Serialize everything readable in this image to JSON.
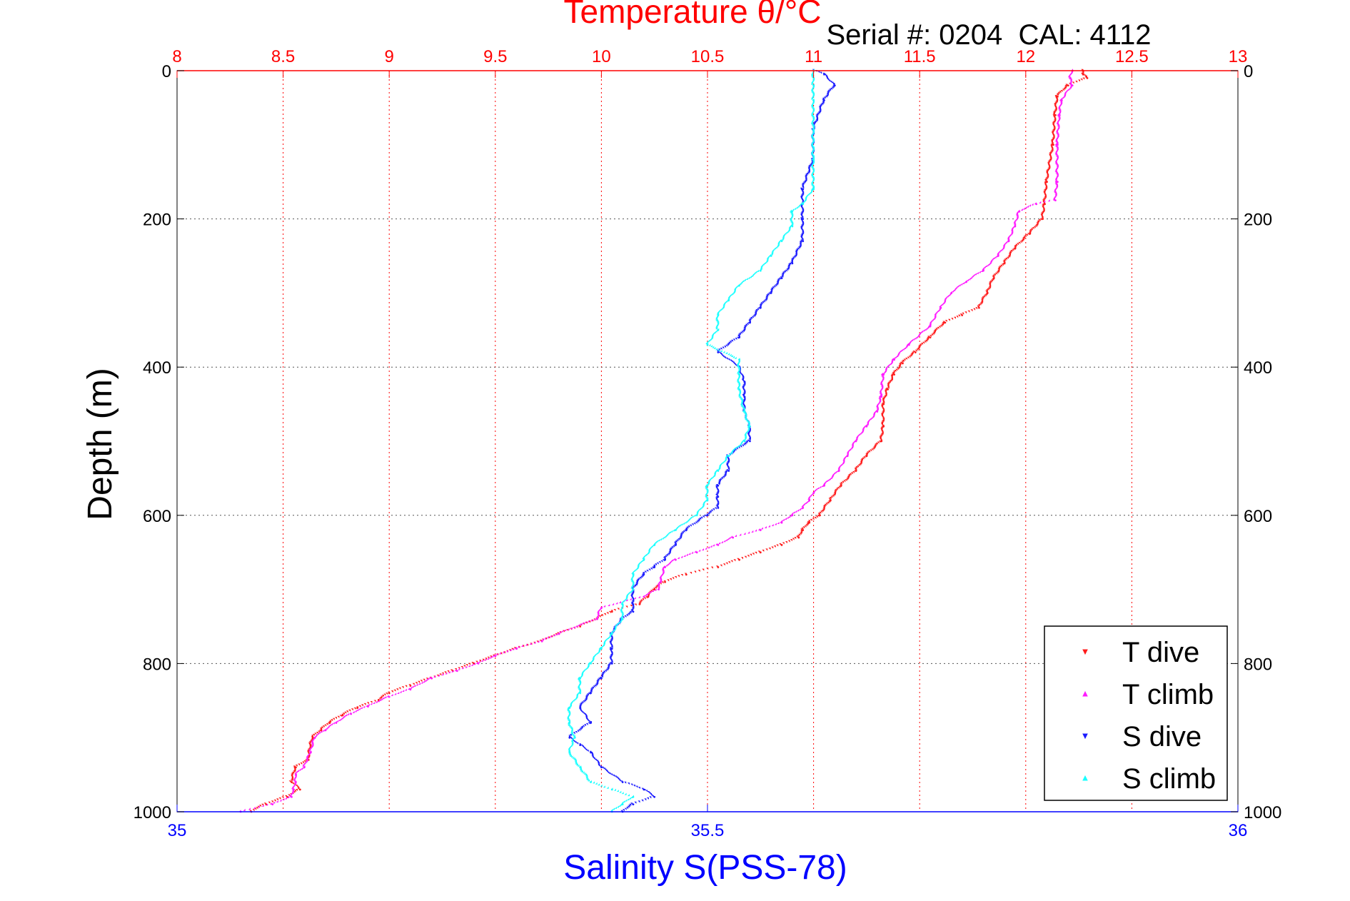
{
  "chart_data": {
    "type": "scatter",
    "title": "Temperature θ/°C",
    "subtitle": "Serial #: 0204  CAL: 4112",
    "xlabel_top": "Temperature θ/°C",
    "xlabel_bottom": "Salinity S(PSS-78)",
    "ylabel": "Depth (m)",
    "grid": true,
    "legend_position": "bottom-right",
    "y_reversed": true,
    "ylim": [
      0,
      1000
    ],
    "yticks": [
      "0",
      "200",
      "400",
      "600",
      "800",
      "1000"
    ],
    "xlim_top": [
      8,
      13
    ],
    "xticks_top": [
      "8",
      "8.5",
      "9",
      "9.5",
      "10",
      "10.5",
      "11",
      "11.5",
      "12",
      "12.5",
      "13"
    ],
    "xlim_bottom": [
      35,
      36
    ],
    "xticks_bottom": [
      "35",
      "35.5",
      "36"
    ],
    "colors": {
      "temperature_axis": "#ff0000",
      "salinity_axis": "#0000ff",
      "grid": "#555555"
    },
    "series": [
      {
        "name": "T dive",
        "axis": "top",
        "color": "#ff1a1a",
        "marker": "triangle-down",
        "points": [
          [
            12.27,
            0
          ],
          [
            12.27,
            5
          ],
          [
            12.29,
            10
          ],
          [
            12.2,
            20
          ],
          [
            12.15,
            35
          ],
          [
            12.14,
            60
          ],
          [
            12.13,
            100
          ],
          [
            12.1,
            150
          ],
          [
            12.09,
            180
          ],
          [
            12.08,
            200
          ],
          [
            12.02,
            220
          ],
          [
            11.95,
            240
          ],
          [
            11.9,
            260
          ],
          [
            11.85,
            280
          ],
          [
            11.82,
            300
          ],
          [
            11.78,
            320
          ],
          [
            11.7,
            330
          ],
          [
            11.62,
            340
          ],
          [
            11.55,
            360
          ],
          [
            11.48,
            380
          ],
          [
            11.42,
            395
          ],
          [
            11.38,
            410
          ],
          [
            11.35,
            430
          ],
          [
            11.33,
            450
          ],
          [
            11.33,
            480
          ],
          [
            11.32,
            500
          ],
          [
            11.25,
            520
          ],
          [
            11.2,
            540
          ],
          [
            11.13,
            560
          ],
          [
            11.08,
            580
          ],
          [
            11.03,
            600
          ],
          [
            10.98,
            610
          ],
          [
            10.95,
            620
          ],
          [
            10.93,
            630
          ],
          [
            10.85,
            640
          ],
          [
            10.75,
            650
          ],
          [
            10.65,
            660
          ],
          [
            10.55,
            670
          ],
          [
            10.4,
            680
          ],
          [
            10.3,
            690
          ],
          [
            10.25,
            700
          ],
          [
            10.22,
            710
          ],
          [
            10.18,
            720
          ],
          [
            10.05,
            730
          ],
          [
            9.98,
            740
          ],
          [
            9.9,
            750
          ],
          [
            9.8,
            760
          ],
          [
            9.72,
            770
          ],
          [
            9.6,
            780
          ],
          [
            9.5,
            790
          ],
          [
            9.4,
            800
          ],
          [
            9.3,
            810
          ],
          [
            9.2,
            820
          ],
          [
            9.1,
            830
          ],
          [
            9.0,
            840
          ],
          [
            8.95,
            850
          ],
          [
            8.85,
            860
          ],
          [
            8.78,
            870
          ],
          [
            8.72,
            880
          ],
          [
            8.68,
            890
          ],
          [
            8.64,
            900
          ],
          [
            8.63,
            910
          ],
          [
            8.62,
            930
          ],
          [
            8.56,
            940
          ],
          [
            8.54,
            960
          ],
          [
            8.58,
            970
          ],
          [
            8.52,
            980
          ],
          [
            8.42,
            990
          ],
          [
            8.35,
            1000
          ]
        ]
      },
      {
        "name": "T climb",
        "axis": "top",
        "color": "#ff1aff",
        "marker": "triangle-up",
        "points": [
          [
            12.22,
            0
          ],
          [
            12.21,
            10
          ],
          [
            12.22,
            20
          ],
          [
            12.17,
            40
          ],
          [
            12.16,
            60
          ],
          [
            12.15,
            100
          ],
          [
            12.15,
            150
          ],
          [
            12.14,
            175
          ],
          [
            12.05,
            180
          ],
          [
            11.97,
            190
          ],
          [
            11.95,
            210
          ],
          [
            11.92,
            230
          ],
          [
            11.87,
            250
          ],
          [
            11.8,
            270
          ],
          [
            11.72,
            285
          ],
          [
            11.65,
            300
          ],
          [
            11.6,
            320
          ],
          [
            11.55,
            345
          ],
          [
            11.45,
            370
          ],
          [
            11.38,
            390
          ],
          [
            11.33,
            410
          ],
          [
            11.32,
            440
          ],
          [
            11.3,
            460
          ],
          [
            11.25,
            480
          ],
          [
            11.2,
            500
          ],
          [
            11.16,
            520
          ],
          [
            11.12,
            540
          ],
          [
            11.05,
            560
          ],
          [
            11.0,
            570
          ],
          [
            10.98,
            580
          ],
          [
            10.95,
            590
          ],
          [
            10.9,
            600
          ],
          [
            10.85,
            610
          ],
          [
            10.75,
            620
          ],
          [
            10.62,
            630
          ],
          [
            10.55,
            640
          ],
          [
            10.45,
            650
          ],
          [
            10.35,
            660
          ],
          [
            10.3,
            670
          ],
          [
            10.28,
            690
          ],
          [
            10.27,
            700
          ],
          [
            10.2,
            710
          ],
          [
            10.0,
            725
          ],
          [
            9.98,
            740
          ],
          [
            9.8,
            760
          ],
          [
            9.72,
            770
          ],
          [
            9.6,
            780
          ],
          [
            9.5,
            790
          ],
          [
            9.42,
            800
          ],
          [
            9.32,
            810
          ],
          [
            9.2,
            820
          ],
          [
            9.1,
            835
          ],
          [
            9.0,
            845
          ],
          [
            8.9,
            858
          ],
          [
            8.82,
            868
          ],
          [
            8.75,
            880
          ],
          [
            8.7,
            890
          ],
          [
            8.65,
            900
          ],
          [
            8.63,
            920
          ],
          [
            8.6,
            940
          ],
          [
            8.56,
            950
          ],
          [
            8.56,
            960
          ],
          [
            8.55,
            970
          ],
          [
            8.54,
            980
          ],
          [
            8.45,
            990
          ],
          [
            8.3,
            1000
          ]
        ]
      },
      {
        "name": "S dive",
        "axis": "bottom",
        "color": "#1a1aff",
        "marker": "triangle-down",
        "points": [
          [
            35.6,
            0
          ],
          [
            35.61,
            5
          ],
          [
            35.62,
            20
          ],
          [
            35.61,
            40
          ],
          [
            35.6,
            80
          ],
          [
            35.6,
            120
          ],
          [
            35.59,
            160
          ],
          [
            35.59,
            200
          ],
          [
            35.59,
            230
          ],
          [
            35.58,
            260
          ],
          [
            35.57,
            280
          ],
          [
            35.56,
            300
          ],
          [
            35.55,
            320
          ],
          [
            35.54,
            340
          ],
          [
            35.53,
            360
          ],
          [
            35.51,
            380
          ],
          [
            35.53,
            400
          ],
          [
            35.535,
            420
          ],
          [
            35.535,
            440
          ],
          [
            35.535,
            460
          ],
          [
            35.54,
            480
          ],
          [
            35.54,
            500
          ],
          [
            35.52,
            520
          ],
          [
            35.52,
            540
          ],
          [
            35.51,
            560
          ],
          [
            35.51,
            575
          ],
          [
            35.51,
            590
          ],
          [
            35.5,
            600
          ],
          [
            35.48,
            620
          ],
          [
            35.47,
            640
          ],
          [
            35.46,
            660
          ],
          [
            35.45,
            670
          ],
          [
            35.44,
            680
          ],
          [
            35.43,
            700
          ],
          [
            35.43,
            720
          ],
          [
            35.43,
            730
          ],
          [
            35.42,
            740
          ],
          [
            35.41,
            760
          ],
          [
            35.41,
            780
          ],
          [
            35.41,
            800
          ],
          [
            35.4,
            820
          ],
          [
            35.39,
            840
          ],
          [
            35.38,
            860
          ],
          [
            35.39,
            880
          ],
          [
            35.37,
            900
          ],
          [
            35.38,
            910
          ],
          [
            35.39,
            920
          ],
          [
            35.4,
            940
          ],
          [
            35.42,
            960
          ],
          [
            35.44,
            970
          ],
          [
            35.45,
            980
          ],
          [
            35.43,
            990
          ],
          [
            35.42,
            1000
          ]
        ]
      },
      {
        "name": "S climb",
        "axis": "bottom",
        "color": "#1affff",
        "marker": "triangle-up",
        "points": [
          [
            35.6,
            0
          ],
          [
            35.6,
            20
          ],
          [
            35.6,
            40
          ],
          [
            35.6,
            80
          ],
          [
            35.6,
            120
          ],
          [
            35.6,
            160
          ],
          [
            35.59,
            180
          ],
          [
            35.58,
            190
          ],
          [
            35.58,
            210
          ],
          [
            35.57,
            230
          ],
          [
            35.56,
            250
          ],
          [
            35.55,
            270
          ],
          [
            35.53,
            290
          ],
          [
            35.52,
            310
          ],
          [
            35.51,
            330
          ],
          [
            35.51,
            350
          ],
          [
            35.5,
            370
          ],
          [
            35.53,
            390
          ],
          [
            35.53,
            410
          ],
          [
            35.53,
            430
          ],
          [
            35.535,
            460
          ],
          [
            35.54,
            480
          ],
          [
            35.535,
            500
          ],
          [
            35.52,
            520
          ],
          [
            35.51,
            540
          ],
          [
            35.5,
            560
          ],
          [
            35.5,
            580
          ],
          [
            35.49,
            600
          ],
          [
            35.47,
            620
          ],
          [
            35.45,
            640
          ],
          [
            35.44,
            660
          ],
          [
            35.43,
            680
          ],
          [
            35.43,
            700
          ],
          [
            35.42,
            720
          ],
          [
            35.42,
            740
          ],
          [
            35.41,
            760
          ],
          [
            35.4,
            780
          ],
          [
            35.39,
            800
          ],
          [
            35.38,
            820
          ],
          [
            35.38,
            840
          ],
          [
            35.37,
            860
          ],
          [
            35.37,
            880
          ],
          [
            35.375,
            900
          ],
          [
            35.37,
            920
          ],
          [
            35.38,
            940
          ],
          [
            35.39,
            960
          ],
          [
            35.41,
            970
          ],
          [
            35.43,
            980
          ],
          [
            35.42,
            990
          ],
          [
            35.41,
            1000
          ]
        ]
      }
    ],
    "legend": [
      "T dive",
      "T climb",
      "S dive",
      "S climb"
    ]
  }
}
